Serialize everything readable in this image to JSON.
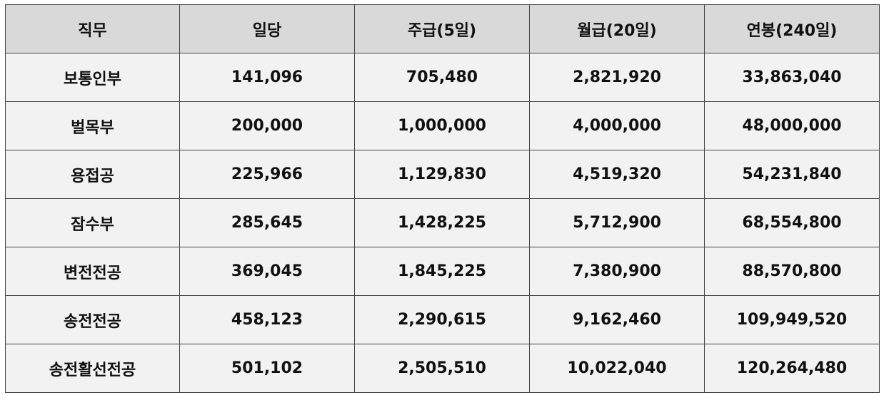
{
  "table": {
    "headers": [
      "직무",
      "일당",
      "주급(5일)",
      "월급(20일)",
      "연봉(240일)"
    ],
    "rows": [
      [
        "보통인부",
        "141,096",
        "705,480",
        "2,821,920",
        "33,863,040"
      ],
      [
        "벌목부",
        "200,000",
        "1,000,000",
        "4,000,000",
        "48,000,000"
      ],
      [
        "용접공",
        "225,966",
        "1,129,830",
        "4,519,320",
        "54,231,840"
      ],
      [
        "잠수부",
        "285,645",
        "1,428,225",
        "5,712,900",
        "68,554,800"
      ],
      [
        "변전전공",
        "369,045",
        "1,845,225",
        "7,380,900",
        "88,570,800"
      ],
      [
        "송전전공",
        "458,123",
        "2,290,615",
        "9,162,460",
        "109,949,520"
      ],
      [
        "송전활선전공",
        "501,102",
        "2,505,510",
        "10,022,040",
        "120,264,480"
      ]
    ]
  }
}
